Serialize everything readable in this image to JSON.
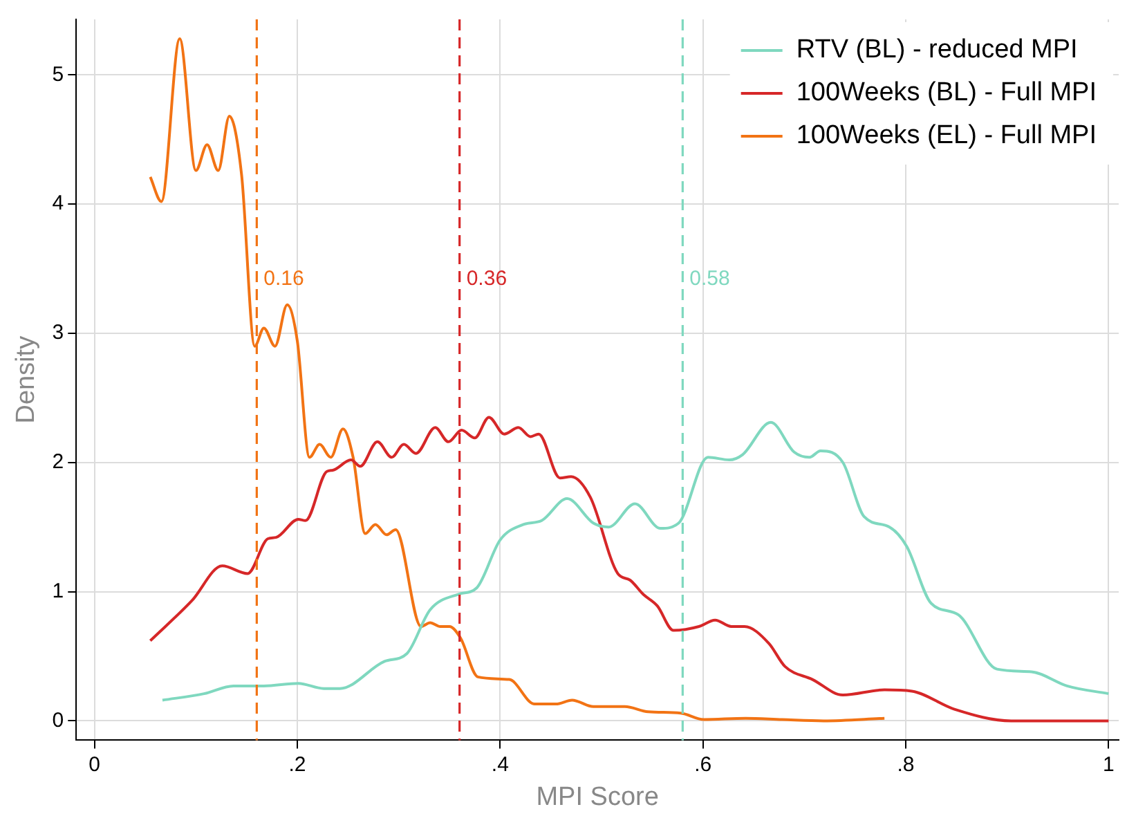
{
  "chart_data": {
    "type": "line",
    "xlabel": "MPI Score",
    "ylabel": "Density",
    "xlim": [
      -0.018,
      1.01
    ],
    "ylim": [
      -0.15,
      5.43
    ],
    "xticks": [
      0,
      {
        "value": 0.2,
        "label": ".2"
      },
      {
        "value": 0.4,
        "label": ".4"
      },
      {
        "value": 0.6,
        "label": ".6"
      },
      {
        "value": 0.8,
        "label": ".8"
      },
      1
    ],
    "yticks": [
      0,
      1,
      2,
      3,
      4,
      5
    ],
    "grid": true,
    "legend": "top right",
    "marker": "none",
    "line_style": "solid",
    "series": [
      {
        "name": "RTV (BL) - reduced MPI",
        "color": "#7fd8bf",
        "x": [
          0.067,
          0.108,
          0.137,
          0.167,
          0.201,
          0.226,
          0.242,
          0.286,
          0.308,
          0.331,
          0.359,
          0.377,
          0.4,
          0.423,
          0.441,
          0.466,
          0.492,
          0.507,
          0.533,
          0.558,
          0.576,
          0.605,
          0.626,
          0.639,
          0.667,
          0.69,
          0.705,
          0.716,
          0.738,
          0.759,
          0.784,
          0.801,
          0.825,
          0.852,
          0.89,
          0.924,
          0.959,
          1.0
        ],
        "values": [
          0.16,
          0.21,
          0.27,
          0.27,
          0.29,
          0.25,
          0.25,
          0.46,
          0.52,
          0.86,
          0.98,
          1.03,
          1.4,
          1.52,
          1.55,
          1.72,
          1.53,
          1.5,
          1.68,
          1.49,
          1.53,
          2.04,
          2.02,
          2.06,
          2.31,
          2.08,
          2.04,
          2.09,
          2.0,
          1.58,
          1.5,
          1.35,
          0.91,
          0.82,
          0.4,
          0.38,
          0.27,
          0.21
        ]
      },
      {
        "name": "100Weeks (BL) - Full MPI",
        "color": "#d62728",
        "x": [
          0.055,
          0.096,
          0.126,
          0.151,
          0.171,
          0.179,
          0.201,
          0.208,
          0.229,
          0.235,
          0.253,
          0.262,
          0.279,
          0.293,
          0.305,
          0.317,
          0.336,
          0.349,
          0.362,
          0.375,
          0.389,
          0.404,
          0.418,
          0.43,
          0.438,
          0.459,
          0.47,
          0.489,
          0.516,
          0.528,
          0.541,
          0.555,
          0.571,
          0.596,
          0.612,
          0.628,
          0.641,
          0.665,
          0.681,
          0.708,
          0.738,
          0.779,
          0.806,
          0.848,
          0.904,
          1.0
        ],
        "values": [
          0.62,
          0.93,
          1.2,
          1.14,
          1.41,
          1.42,
          1.56,
          1.55,
          1.93,
          1.94,
          2.02,
          1.97,
          2.16,
          2.04,
          2.14,
          2.07,
          2.27,
          2.16,
          2.25,
          2.19,
          2.35,
          2.22,
          2.27,
          2.2,
          2.22,
          1.88,
          1.89,
          1.73,
          1.14,
          1.09,
          0.98,
          0.89,
          0.7,
          0.73,
          0.78,
          0.73,
          0.73,
          0.6,
          0.42,
          0.32,
          0.2,
          0.24,
          0.23,
          0.09,
          0.0,
          0.0
        ]
      },
      {
        "name": "100Weeks (EL) - Full MPI",
        "color": "#f27314",
        "x": [
          0.055,
          0.066,
          0.084,
          0.1,
          0.111,
          0.122,
          0.133,
          0.145,
          0.158,
          0.167,
          0.178,
          0.19,
          0.2,
          0.212,
          0.222,
          0.233,
          0.245,
          0.255,
          0.267,
          0.277,
          0.288,
          0.297,
          0.322,
          0.331,
          0.341,
          0.35,
          0.361,
          0.378,
          0.409,
          0.434,
          0.455,
          0.471,
          0.492,
          0.523,
          0.546,
          0.578,
          0.601,
          0.642,
          0.678,
          0.719,
          0.779
        ],
        "values": [
          4.21,
          4.02,
          5.28,
          4.26,
          4.46,
          4.26,
          4.68,
          4.23,
          2.9,
          3.04,
          2.9,
          3.22,
          2.94,
          2.04,
          2.14,
          2.04,
          2.26,
          2.04,
          1.45,
          1.52,
          1.44,
          1.48,
          0.73,
          0.76,
          0.73,
          0.73,
          0.64,
          0.34,
          0.32,
          0.13,
          0.13,
          0.16,
          0.11,
          0.11,
          0.07,
          0.06,
          0.01,
          0.02,
          0.01,
          0.0,
          0.02
        ]
      }
    ],
    "ref_lines": [
      {
        "axis": "x",
        "value": 0.16,
        "label": "0.16",
        "color": "#f27314",
        "line_style": "dashed"
      },
      {
        "axis": "x",
        "value": 0.36,
        "label": "0.36",
        "color": "#d62728",
        "line_style": "dashed"
      },
      {
        "axis": "x",
        "value": 0.58,
        "label": "0.58",
        "color": "#7fd8bf",
        "line_style": "dashed"
      }
    ]
  }
}
